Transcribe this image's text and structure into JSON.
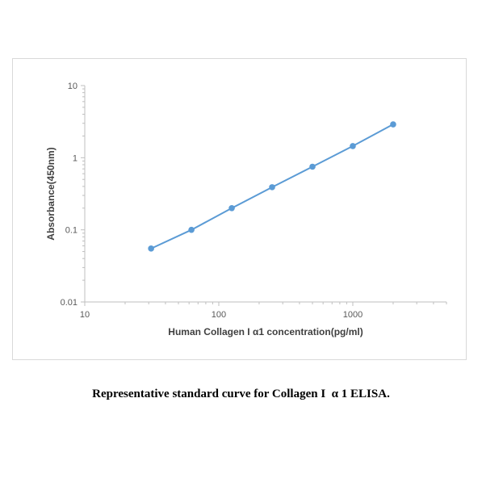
{
  "chart_data": {
    "type": "line",
    "x_scale": "log",
    "y_scale": "log",
    "xlabel": "Human Collagen I α1 concentration(pg/ml)",
    "ylabel": "Absorbance(450nm)",
    "xlim": [
      10,
      5000
    ],
    "ylim": [
      0.01,
      10
    ],
    "x_tick_labels": [
      "10",
      "100",
      "1000"
    ],
    "x_ticks": [
      10,
      100,
      1000
    ],
    "y_tick_labels": [
      "0.01",
      "0.1",
      "1",
      "10"
    ],
    "y_ticks": [
      0.01,
      0.1,
      1,
      10
    ],
    "grid": false,
    "legend": "none",
    "series": [
      {
        "color": "#5b9bd5",
        "x": [
          31.25,
          62.5,
          125,
          250,
          500,
          1000,
          2000
        ],
        "y": [
          0.055,
          0.1,
          0.2,
          0.39,
          0.75,
          1.45,
          2.9
        ]
      }
    ]
  },
  "caption": "Representative standard curve for Collagen I  α 1 ELISA."
}
